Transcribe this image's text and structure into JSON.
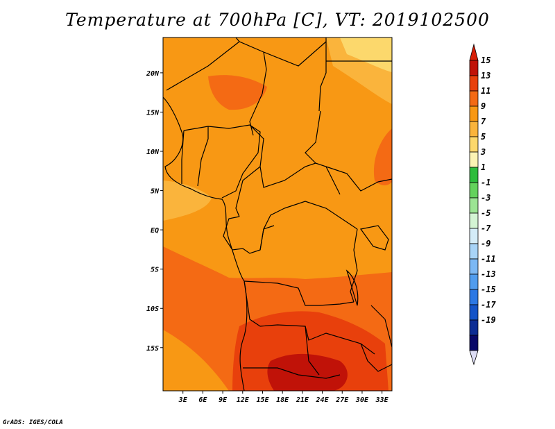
{
  "title": "Temperature at 700hPa [C], VT: 2019102500",
  "credit": "GrADS: IGES/COLA",
  "map": {
    "lat_range": [
      -20.5,
      24.5
    ],
    "lon_range": [
      0,
      34.5
    ],
    "lat_ticks": [
      {
        "value": 20,
        "label": "20N"
      },
      {
        "value": 15,
        "label": "15N"
      },
      {
        "value": 10,
        "label": "10N"
      },
      {
        "value": 5,
        "label": "5N"
      },
      {
        "value": 0,
        "label": "EQ"
      },
      {
        "value": -5,
        "label": "5S"
      },
      {
        "value": -10,
        "label": "10S"
      },
      {
        "value": -15,
        "label": "15S"
      }
    ],
    "lon_ticks": [
      {
        "value": 3,
        "label": "3E"
      },
      {
        "value": 6,
        "label": "6E"
      },
      {
        "value": 9,
        "label": "9E"
      },
      {
        "value": 12,
        "label": "12E"
      },
      {
        "value": 15,
        "label": "15E"
      },
      {
        "value": 18,
        "label": "18E"
      },
      {
        "value": 21,
        "label": "21E"
      },
      {
        "value": 24,
        "label": "24E"
      },
      {
        "value": 27,
        "label": "27E"
      },
      {
        "value": 30,
        "label": "30E"
      },
      {
        "value": 33,
        "label": "33E"
      }
    ]
  },
  "colorbar": {
    "labels": [
      "15",
      "13",
      "11",
      "9",
      "7",
      "5",
      "3",
      "1",
      "-1",
      "-3",
      "-5",
      "-7",
      "-9",
      "-11",
      "-13",
      "-15",
      "-17",
      "-19"
    ],
    "colors": [
      "#c01208",
      "#e8400c",
      "#f46a14",
      "#f89814",
      "#fab43c",
      "#fcd86c",
      "#fcf4b4",
      "#2ebc3c",
      "#64d25c",
      "#9ce494",
      "#d4f4d4",
      "#d4ecf8",
      "#a8d4f8",
      "#7cb8f4",
      "#509cee",
      "#2c78e4",
      "#1454c8",
      "#0c2c94",
      "#080868"
    ],
    "top_arrow_color": "#d81e06",
    "bottom_arrow_color": "#dcdcf4"
  }
}
